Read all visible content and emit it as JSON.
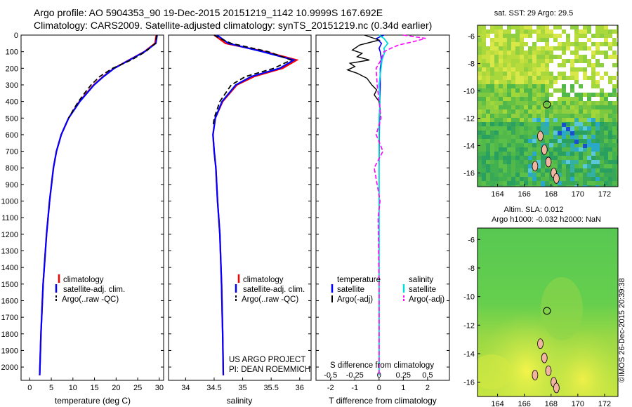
{
  "header": {
    "title_line1": "Argo profile: AO 5904353_90 19-Dec-2015 20151219_1142 10.9999S 167.692E",
    "title_line2": "Climatology: CARS2009. Satellite-adjusted climatology: synTS_20151219.nc (0.34d earlier)"
  },
  "credit": "©IMOS 26-Dec-2015 20:39:38",
  "colors": {
    "climatology": "#ff0000",
    "satellite": "#0000ff",
    "argo": "#000000",
    "sal_satellite": "#00dddd",
    "sal_argo": "#ff00ff"
  },
  "chart_data": [
    {
      "type": "line",
      "name": "temperature-profile",
      "xlabel": "temperature (deg C)",
      "ylabel": "",
      "xlim": [
        -2,
        31
      ],
      "ylim": [
        2080,
        0
      ],
      "xticks": [
        0,
        5,
        10,
        15,
        20,
        25,
        30
      ],
      "yticks": [
        0,
        100,
        200,
        300,
        400,
        500,
        600,
        700,
        800,
        900,
        1000,
        1100,
        1200,
        1300,
        1400,
        1500,
        1600,
        1700,
        1800,
        1900,
        2000
      ],
      "legend": [
        "climatology",
        "satellite-adj. clim.",
        "Argo(..raw -QC)"
      ],
      "series": [
        {
          "name": "climatology",
          "depth": [
            0,
            50,
            100,
            150,
            200,
            250,
            300,
            400,
            500,
            600,
            700,
            800,
            1000,
            1200,
            1500,
            1800,
            2050
          ],
          "values": [
            29.3,
            29.0,
            26.5,
            23.0,
            19.5,
            17.0,
            14.8,
            11.5,
            9.0,
            7.3,
            6.2,
            5.5,
            4.6,
            3.9,
            3.1,
            2.6,
            2.3
          ]
        },
        {
          "name": "satellite-adj. clim.",
          "depth": [
            0,
            50,
            100,
            150,
            200,
            250,
            300,
            400,
            500,
            600,
            700,
            800,
            1000,
            1200,
            1500,
            1800,
            2050
          ],
          "values": [
            29.5,
            29.2,
            26.6,
            23.1,
            19.6,
            17.1,
            14.9,
            11.6,
            9.0,
            7.3,
            6.2,
            5.5,
            4.6,
            3.9,
            3.1,
            2.6,
            2.3
          ]
        },
        {
          "name": "Argo(..raw -QC)",
          "depth": [
            0,
            50,
            100,
            150,
            200,
            250,
            300,
            350,
            400,
            450,
            500
          ],
          "values": [
            29.4,
            29.1,
            26.8,
            23.5,
            19.2,
            16.2,
            14.2,
            12.7,
            11.3,
            10.1,
            9.0
          ]
        }
      ]
    },
    {
      "type": "line",
      "name": "salinity-profile",
      "xlabel": "salinity",
      "xlim": [
        33.7,
        36.2
      ],
      "ylim": [
        2080,
        0
      ],
      "xticks": [
        34,
        34.5,
        35,
        35.5,
        36
      ],
      "legend": [
        "climatology",
        "satellite-adj. clim.",
        "Argo(..raw -QC)"
      ],
      "annotation": [
        "US ARGO PROJECT",
        "PI: DEAN ROEMMICH"
      ],
      "series": [
        {
          "name": "climatology",
          "depth": [
            0,
            50,
            100,
            150,
            200,
            250,
            300,
            400,
            500,
            600,
            700,
            800,
            1000,
            1200,
            1500,
            1800,
            2050
          ],
          "values": [
            34.5,
            34.7,
            35.4,
            35.95,
            35.7,
            35.2,
            34.9,
            34.65,
            34.52,
            34.48,
            34.5,
            34.53,
            34.56,
            34.6,
            34.63,
            34.65,
            34.66
          ]
        },
        {
          "name": "satellite-adj. clim.",
          "depth": [
            0,
            50,
            100,
            150,
            200,
            250,
            300,
            400,
            500,
            600,
            700,
            800,
            1000,
            1200,
            1500,
            1800,
            2050
          ],
          "values": [
            34.55,
            34.75,
            35.35,
            35.9,
            35.65,
            35.15,
            34.88,
            34.64,
            34.52,
            34.48,
            34.5,
            34.53,
            34.56,
            34.6,
            34.63,
            34.65,
            34.66
          ]
        },
        {
          "name": "Argo(..raw -QC)",
          "depth": [
            0,
            20,
            50,
            100,
            150,
            200,
            250,
            300,
            400,
            500,
            550
          ],
          "values": [
            34.5,
            34.6,
            34.8,
            35.45,
            35.85,
            35.55,
            35.05,
            34.8,
            34.6,
            34.5,
            34.48
          ]
        }
      ]
    },
    {
      "type": "line",
      "name": "difference-profile",
      "xlabel": "T difference from climatology",
      "xlabel2": "S difference from climatology",
      "xlim": [
        -2.6,
        2.9
      ],
      "ylim": [
        2080,
        0
      ],
      "xticks": [
        -2,
        -1,
        0,
        1,
        2
      ],
      "xticks_s": [
        -0.5,
        -0.25,
        0,
        0.25,
        0.5
      ],
      "legend_t_head": "temperature",
      "legend_s_head": "salinity",
      "legend_t": [
        "satellite",
        "Argo(-adj)"
      ],
      "legend_s": [
        "satellite",
        "Argo(-adj)"
      ],
      "series": [
        {
          "name": "T satellite",
          "depth": [
            0,
            20,
            50,
            80,
            100,
            150,
            200,
            300,
            500,
            800,
            1200,
            1600,
            2050
          ],
          "values": [
            0.2,
            -0.1,
            0.1,
            0.0,
            0.05,
            0.1,
            0.05,
            0.05,
            0.02,
            0.0,
            0.0,
            0.0,
            0.0
          ]
        },
        {
          "name": "T Argo",
          "depth": [
            0,
            30,
            60,
            90,
            110,
            130,
            150,
            170,
            190,
            210,
            230,
            260,
            300,
            330,
            360,
            400,
            450,
            520
          ],
          "values": [
            -0.6,
            0.0,
            -0.8,
            -1.1,
            -0.7,
            -0.9,
            -0.4,
            -1.2,
            -1.0,
            -1.3,
            -0.9,
            -0.5,
            -0.3,
            -0.1,
            -0.2,
            0.0,
            0.05,
            0.0
          ]
        },
        {
          "name": "S satellite",
          "depth": [
            0,
            20,
            50,
            80,
            100,
            150,
            200,
            300,
            400,
            500,
            800,
            1200,
            1600,
            2050
          ],
          "values": [
            0.0,
            0.05,
            0.09,
            0.05,
            0.06,
            0.03,
            0.02,
            0.0,
            0.01,
            0.0,
            0.0,
            0.0,
            0.0,
            0.0
          ]
        },
        {
          "name": "S Argo",
          "depth": [
            0,
            20,
            40,
            60,
            80,
            100,
            150,
            200,
            300,
            400,
            500,
            600,
            700,
            800,
            900,
            1000,
            1100,
            1500,
            2050
          ],
          "values": [
            0.25,
            0.48,
            0.35,
            0.2,
            0.12,
            0.05,
            0.02,
            -0.03,
            -0.02,
            0.0,
            0.02,
            -0.03,
            0.04,
            -0.05,
            -0.02,
            0.01,
            -0.01,
            0.0,
            0.0
          ]
        }
      ]
    },
    {
      "type": "heatmap",
      "name": "sst-map",
      "title": "sat. SST: 29 Argo: 29.5",
      "xticks": [
        164,
        166,
        168,
        170,
        172
      ],
      "yticks": [
        -6,
        -8,
        -10,
        -12,
        -14,
        -16
      ],
      "xlim": [
        162.5,
        173.0
      ],
      "ylim": [
        -17.0,
        -5.2
      ],
      "marker": {
        "lon": 167.692,
        "lat": -11.0
      }
    },
    {
      "type": "heatmap",
      "name": "sla-map",
      "title": "Altim. SLA: 0.012",
      "subtitle": "Argo h1000: -0.032 h2000: NaN",
      "xticks": [
        164,
        166,
        168,
        170,
        172
      ],
      "yticks": [
        -6,
        -8,
        -10,
        -12,
        -14,
        -16
      ],
      "xlim": [
        162.5,
        173.0
      ],
      "ylim": [
        -17.0,
        -5.2
      ],
      "marker": {
        "lon": 167.692,
        "lat": -11.0
      }
    }
  ]
}
